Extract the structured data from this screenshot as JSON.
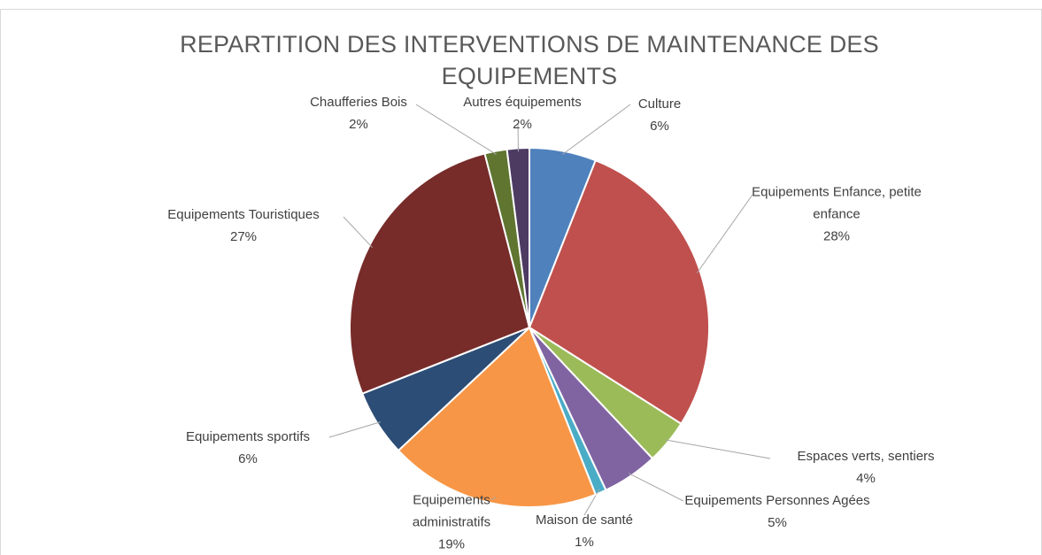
{
  "chart_data": {
    "type": "pie",
    "title": "REPARTITION  DES INTERVENTIONS  DE MAINTENANCE DES EQUIPEMENTS",
    "categories": [
      "Culture",
      "Equipements Enfance, petite enfance",
      "Espaces verts,  sentiers",
      "Equipements Personnes Agées",
      "Maison de santé",
      "Equipements administratifs",
      "Equipements sportifs",
      "Equipements Touristiques",
      "Chaufferies Bois",
      "Autres équipements"
    ],
    "values": [
      6,
      28,
      4,
      5,
      1,
      19,
      6,
      27,
      2,
      2
    ],
    "value_labels": [
      "6%",
      "28%",
      "4%",
      "5%",
      "1%",
      "19%",
      "6%",
      "27%",
      "2%",
      "2%"
    ],
    "colors": [
      "#4f81bd",
      "#c0504d",
      "#9bbb59",
      "#8064a2",
      "#4bacc6",
      "#f79646",
      "#2c4d75",
      "#772c2a",
      "#5f7530",
      "#4d3b62"
    ]
  }
}
